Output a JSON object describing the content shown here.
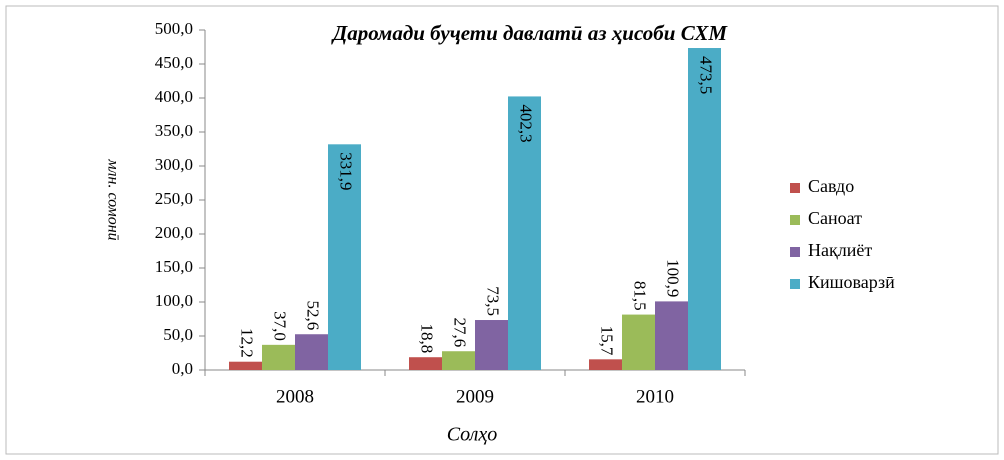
{
  "chart_data": {
    "type": "bar",
    "title": "Даромади буҷети давлатӣ аз ҳисоби СХМ",
    "y_label": "млн. сомонӣ",
    "x_label": "Солҳо",
    "categories": [
      "2008",
      "2009",
      "2010"
    ],
    "series": [
      {
        "name": "Савдо",
        "color": "#c0504d",
        "values": [
          12.2,
          18.8,
          15.7
        ],
        "value_labels": [
          "12,2",
          "18,8",
          "15,7"
        ]
      },
      {
        "name": "Саноат",
        "color": "#9bbb59",
        "values": [
          37.0,
          27.6,
          81.5
        ],
        "value_labels": [
          "37,0",
          "27,6",
          "81,5"
        ]
      },
      {
        "name": "Нақлиёт",
        "color": "#8064a2",
        "values": [
          52.6,
          73.5,
          100.9
        ],
        "value_labels": [
          "52,6",
          "73,5",
          "100,9"
        ]
      },
      {
        "name": "Кишоварзӣ",
        "color": "#4bacc6",
        "values": [
          331.9,
          402.3,
          473.5
        ],
        "value_labels": [
          "331,9",
          "402,3",
          "473,5"
        ]
      }
    ],
    "ylim": [
      0,
      500
    ],
    "yticks": [
      {
        "value": 0,
        "label": "0,0"
      },
      {
        "value": 50,
        "label": "50,0"
      },
      {
        "value": 100,
        "label": "100,0"
      },
      {
        "value": 150,
        "label": "150,0"
      },
      {
        "value": 200,
        "label": "200,0"
      },
      {
        "value": 250,
        "label": "250,0"
      },
      {
        "value": 300,
        "label": "300,0"
      },
      {
        "value": 350,
        "label": "350,0"
      },
      {
        "value": 400,
        "label": "400,0"
      },
      {
        "value": 450,
        "label": "450,0"
      },
      {
        "value": 500,
        "label": "500,0"
      }
    ],
    "legend": "right"
  }
}
